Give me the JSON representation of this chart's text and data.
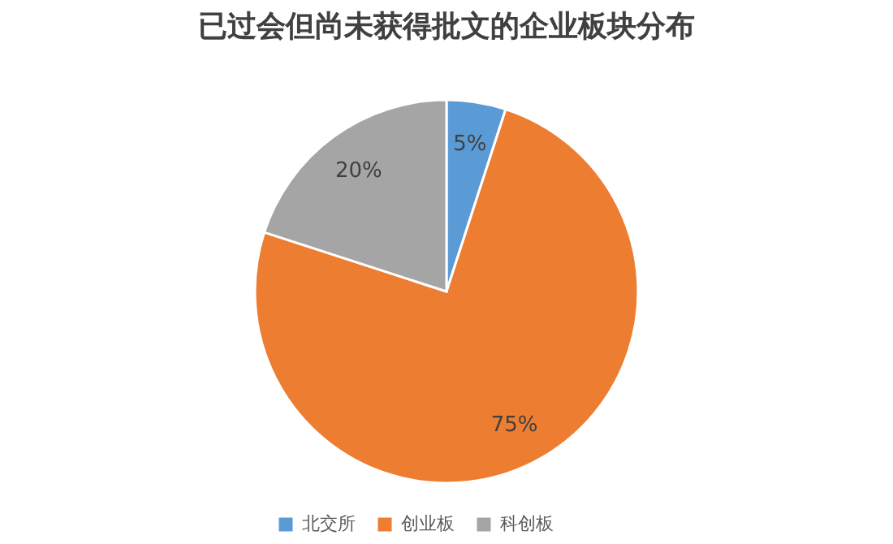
{
  "chart_data": {
    "type": "pie",
    "title": "已过会但尚未获得批文的企业板块分布",
    "categories": [
      "北交所",
      "创业板",
      "科创板"
    ],
    "values": [
      5,
      75,
      20
    ],
    "colors": [
      "#5b9bd5",
      "#ed7d31",
      "#a5a5a5"
    ],
    "value_labels": [
      "5%",
      "75%",
      "20%"
    ],
    "legend": "bottom"
  }
}
